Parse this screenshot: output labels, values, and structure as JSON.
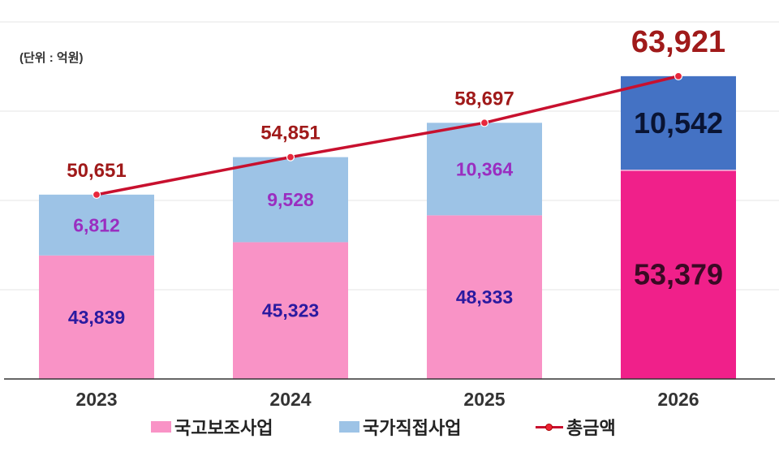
{
  "unit_label": "(단위 : 억원)",
  "legend": [
    {
      "label": "국고보조사업",
      "color": "#f993c6",
      "type": "bar"
    },
    {
      "label": "국가직접사업",
      "color": "#9dc3e6",
      "type": "bar"
    },
    {
      "label": "총금액",
      "color": "#c8102e",
      "type": "line"
    }
  ],
  "colors": {
    "subsidy": "#f993c6",
    "direct": "#9dc3e6",
    "subsidy_highlight": "#f0208a",
    "direct_highlight": "#4472c4",
    "total_line": "#c8102e",
    "total_label": "#a01a1a",
    "subsidy_label": "#2a1aa0",
    "direct_label": "#9a2ec0"
  },
  "labels": {
    "years": [
      "2023",
      "2024",
      "2025",
      "2026"
    ],
    "subsidy": [
      "43,839",
      "45,323",
      "48,333",
      "53,379"
    ],
    "direct": [
      "6,812",
      "9,528",
      "10,364",
      "10,542"
    ],
    "total": [
      "50,651",
      "54,851",
      "58,697",
      "63,921"
    ]
  },
  "chart_data": {
    "type": "bar",
    "stacked": true,
    "title": "",
    "xlabel": "",
    "ylabel": "(단위 : 억원)",
    "categories": [
      "2023",
      "2024",
      "2025",
      "2026"
    ],
    "series": [
      {
        "name": "국고보조사업",
        "type": "bar",
        "values": [
          43839,
          45323,
          48333,
          53379
        ]
      },
      {
        "name": "국가직접사업",
        "type": "bar",
        "values": [
          6812,
          9528,
          10364,
          10542
        ]
      },
      {
        "name": "총금액",
        "type": "line",
        "values": [
          50651,
          54851,
          58697,
          63921
        ]
      }
    ],
    "ylim": [
      30000,
      70000
    ],
    "grid": true,
    "legend_position": "bottom",
    "highlight_category": "2026"
  }
}
